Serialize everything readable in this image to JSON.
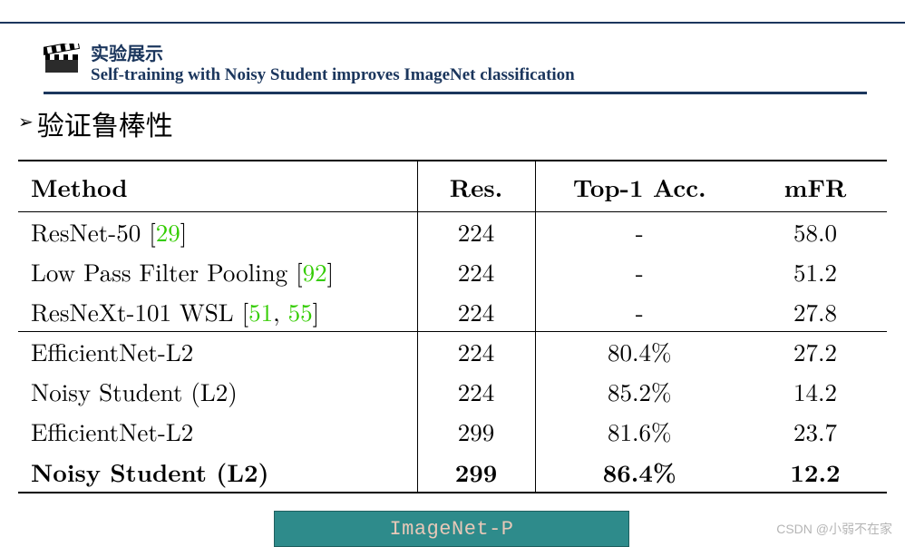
{
  "header": {
    "title_cn": "实验展示",
    "title_en": "Self-training with Noisy Student improves ImageNet classification",
    "underline_color": "#1b365d",
    "top_rule_color": "#1b365d"
  },
  "section": {
    "bullet": "➢",
    "title": "验证鲁棒性"
  },
  "table": {
    "columns": [
      "Method",
      "Res.",
      "Top-1 Acc.",
      "mFR"
    ],
    "column_align": [
      "left",
      "center",
      "center",
      "center"
    ],
    "ref_color": "#33cc00",
    "border_color": "#000000",
    "font_size": 27,
    "groups": [
      {
        "rows": [
          {
            "method_parts": [
              [
                "ResNet-50 [",
                false
              ],
              [
                "29",
                true
              ],
              [
                "]",
                false
              ]
            ],
            "res": "224",
            "top1": "-",
            "mfr": "58.0",
            "bold": false
          },
          {
            "method_parts": [
              [
                "Low Pass Filter Pooling [",
                false
              ],
              [
                "92",
                true
              ],
              [
                "]",
                false
              ]
            ],
            "res": "224",
            "top1": "-",
            "mfr": "51.2",
            "bold": false
          },
          {
            "method_parts": [
              [
                "ResNeXt-101 WSL [",
                false
              ],
              [
                "51",
                true
              ],
              [
                ", ",
                false
              ],
              [
                "55",
                true
              ],
              [
                "]",
                false
              ]
            ],
            "res": "224",
            "top1": "-",
            "mfr": "27.8",
            "bold": false
          }
        ]
      },
      {
        "rows": [
          {
            "method_parts": [
              [
                "EfficientNet-L2",
                false
              ]
            ],
            "res": "224",
            "top1": "80.4%",
            "mfr": "27.2",
            "bold": false
          },
          {
            "method_parts": [
              [
                "Noisy Student (L2)",
                false
              ]
            ],
            "res": "224",
            "top1": "85.2%",
            "mfr": "14.2",
            "bold": false
          },
          {
            "method_parts": [
              [
                "EfficientNet-L2",
                false
              ]
            ],
            "res": "299",
            "top1": "81.6%",
            "mfr": "23.7",
            "bold": false
          },
          {
            "method_parts": [
              [
                "Noisy Student (L2)",
                false
              ]
            ],
            "res": "299",
            "top1": "86.4%",
            "mfr": "12.2",
            "bold": true
          }
        ]
      }
    ]
  },
  "footer": {
    "label": "ImageNet-P",
    "bg_color": "#2e8b8b",
    "border_color": "#1f5f5f",
    "text_color": "#e8c8b8"
  },
  "watermark": "CSDN @小弱不在家"
}
